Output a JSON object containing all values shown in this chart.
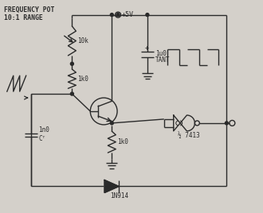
{
  "bg_color": "#d4d0ca",
  "line_color": "#2a2a2a",
  "text_color": "#2a2a2a",
  "label_freq_pot": "FREQUENCY POT",
  "label_range": "10:1 RANGE",
  "label_10k": "10k",
  "label_1k0_top": "1k0",
  "label_1k0_bot": "1k0",
  "label_1n0": "1n0",
  "label_ct": "Cᵀ",
  "label_1u0": "1u0",
  "label_tant": "TANT",
  "label_5v": "+5V",
  "label_7413": "½ 7413",
  "label_diode": "1N914",
  "label_plus": "+",
  "figsize": [
    3.3,
    2.68
  ],
  "dpi": 100
}
